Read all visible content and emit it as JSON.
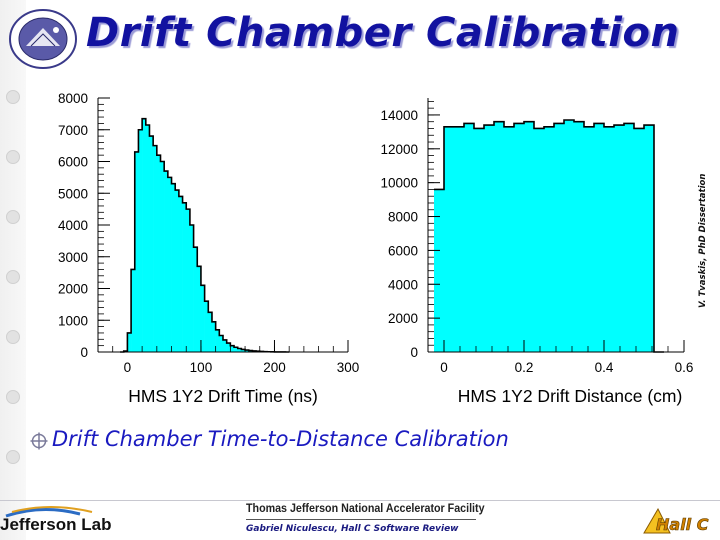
{
  "slide": {
    "title": "Drift Chamber Calibration",
    "citation": "V. Tvaskis, PhD Dissertation",
    "bullet": "Drift Chamber Time-to-Distance Calibration",
    "footer": {
      "lab_name": "Jefferson Lab",
      "facility": "Thomas Jefferson National Accelerator Facility",
      "review": "Gabriel Niculescu, Hall C Software Review",
      "hall_logo_text": "Hall C"
    }
  },
  "colors": {
    "title": "#1212a0",
    "fill": "#00ffff",
    "line": "#000000",
    "bullet_text": "#1a1ac0"
  },
  "chart_data": [
    {
      "type": "histogram",
      "xlabel": "HMS 1Y2 Drift Time (ns)",
      "xlim": [
        -40,
        300
      ],
      "ylim": [
        0,
        8000
      ],
      "xticks": [
        0,
        100,
        200,
        300
      ],
      "yticks": [
        0,
        1000,
        2000,
        3000,
        4000,
        5000,
        6000,
        7000,
        8000
      ],
      "bin_width": 5,
      "bin_start": -10,
      "values": [
        0,
        30,
        600,
        2600,
        6300,
        7000,
        7350,
        7150,
        6800,
        6500,
        6200,
        6000,
        5700,
        5500,
        5300,
        5100,
        4900,
        4700,
        4500,
        4000,
        3300,
        2700,
        2100,
        1600,
        1250,
        950,
        700,
        520,
        380,
        280,
        200,
        150,
        110,
        80,
        60,
        45,
        35,
        25,
        18,
        12,
        8,
        5,
        3,
        2,
        1,
        0
      ]
    },
    {
      "type": "histogram",
      "xlabel": "HMS 1Y2 Drift Distance (cm)",
      "xlim": [
        -0.04,
        0.6
      ],
      "ylim": [
        0,
        15000
      ],
      "xticks": [
        0,
        0.2,
        0.4,
        0.6
      ],
      "yticks": [
        0,
        2000,
        4000,
        6000,
        8000,
        10000,
        12000,
        14000
      ],
      "bin_width": 0.025,
      "bin_start": -0.025,
      "values": [
        9600,
        13300,
        13300,
        13500,
        13200,
        13400,
        13600,
        13300,
        13500,
        13600,
        13200,
        13300,
        13500,
        13700,
        13600,
        13300,
        13500,
        13300,
        13400,
        13500,
        13200,
        13400,
        0
      ]
    }
  ]
}
